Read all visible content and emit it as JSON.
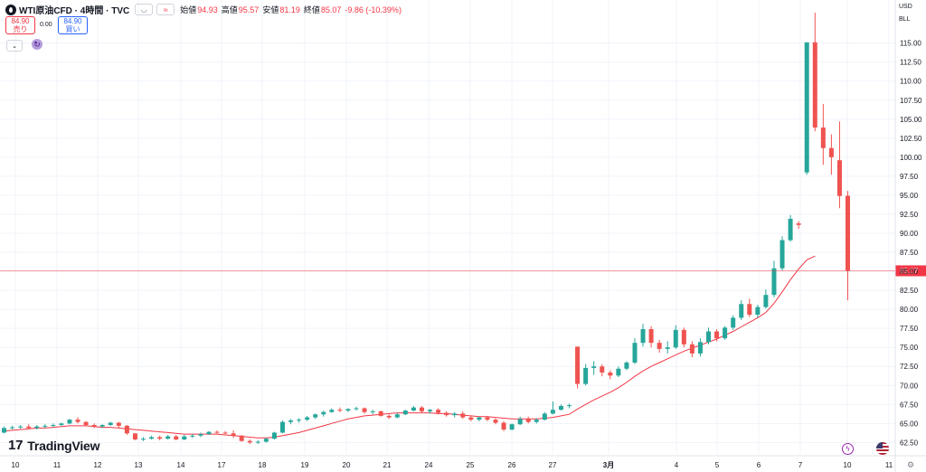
{
  "legend": {
    "symbol": "WTI原油CFD · 4時間 · TVC",
    "open_label": "始値",
    "open": "94.93",
    "high_label": "高値",
    "high": "95.57",
    "low_label": "安値",
    "low": "81.19",
    "close_label": "終値",
    "close": "85.07",
    "change": "-9.86 (-10.39%)"
  },
  "trade": {
    "sell_price": "84.90",
    "sell_label": "売り",
    "spread": "0.00",
    "buy_price": "84.90",
    "buy_label": "買い"
  },
  "scale": {
    "currency": "USD",
    "unit": "BLL"
  },
  "brand": {
    "name": "TradingView"
  },
  "colors": {
    "up": "#26a69a",
    "down": "#ef5350",
    "ma": "#f23645",
    "price_line": "#f23645",
    "grid": "#f0f3fa"
  },
  "chart_data": {
    "type": "candlestick",
    "x_tick_labels": [
      "10",
      "11",
      "12",
      "13",
      "14",
      "17",
      "18",
      "19",
      "20",
      "21",
      "24",
      "25",
      "26",
      "27",
      "3月",
      "4",
      "5",
      "6",
      "7",
      "10",
      "11"
    ],
    "y_ticks": [
      62.5,
      65.0,
      67.5,
      70.0,
      72.5,
      75.0,
      77.5,
      80.0,
      82.5,
      85.0,
      87.5,
      90.0,
      92.5,
      95.0,
      97.5,
      100.0,
      102.5,
      105.0,
      107.5,
      110.0,
      112.5,
      115.0
    ],
    "y_range": [
      61.0,
      119.0
    ],
    "last_price": 85.07,
    "last_price_label": "85.07",
    "ohlc": [
      [
        63.8,
        64.6,
        63.7,
        64.4
      ],
      [
        64.4,
        64.7,
        64.2,
        64.5
      ],
      [
        64.5,
        64.8,
        64.3,
        64.6
      ],
      [
        64.6,
        64.9,
        64.2,
        64.4
      ],
      [
        64.4,
        64.8,
        64.2,
        64.6
      ],
      [
        64.6,
        64.9,
        64.4,
        64.7
      ],
      [
        64.7,
        65.0,
        64.5,
        64.8
      ],
      [
        64.8,
        65.1,
        64.7,
        65.0
      ],
      [
        65.0,
        65.6,
        64.9,
        65.5
      ],
      [
        65.5,
        65.8,
        65.0,
        65.2
      ],
      [
        65.2,
        65.3,
        64.6,
        64.8
      ],
      [
        64.8,
        65.0,
        64.4,
        64.6
      ],
      [
        64.6,
        64.9,
        64.4,
        64.8
      ],
      [
        64.8,
        65.2,
        64.7,
        65.1
      ],
      [
        65.1,
        65.2,
        64.4,
        64.7
      ],
      [
        64.7,
        64.8,
        63.5,
        63.7
      ],
      [
        63.7,
        63.7,
        62.8,
        62.9
      ],
      [
        62.9,
        63.2,
        62.7,
        63.0
      ],
      [
        63.0,
        63.4,
        62.9,
        63.2
      ],
      [
        63.2,
        63.4,
        62.8,
        63.0
      ],
      [
        63.0,
        63.5,
        62.9,
        63.3
      ],
      [
        63.3,
        63.5,
        62.8,
        62.9
      ],
      [
        62.9,
        63.5,
        62.8,
        63.3
      ],
      [
        63.3,
        63.6,
        63.1,
        63.4
      ],
      [
        63.4,
        63.8,
        63.2,
        63.6
      ],
      [
        63.6,
        64.0,
        63.5,
        63.9
      ],
      [
        63.9,
        64.1,
        63.6,
        63.8
      ],
      [
        63.8,
        64.0,
        63.6,
        63.7
      ],
      [
        63.7,
        64.1,
        63.1,
        63.4
      ],
      [
        63.4,
        63.5,
        62.6,
        62.7
      ],
      [
        62.7,
        62.9,
        62.3,
        62.5
      ],
      [
        62.5,
        62.8,
        62.3,
        62.6
      ],
      [
        62.6,
        63.1,
        62.5,
        63.0
      ],
      [
        63.0,
        63.9,
        62.9,
        63.8
      ],
      [
        63.8,
        65.4,
        63.7,
        65.2
      ],
      [
        65.2,
        65.6,
        64.9,
        65.4
      ],
      [
        65.4,
        65.7,
        65.1,
        65.5
      ],
      [
        65.5,
        66.0,
        65.3,
        65.8
      ],
      [
        65.8,
        66.3,
        65.6,
        66.2
      ],
      [
        66.2,
        66.7,
        65.9,
        66.5
      ],
      [
        66.5,
        67.0,
        66.4,
        66.8
      ],
      [
        66.8,
        67.1,
        66.5,
        66.7
      ],
      [
        66.7,
        67.0,
        66.5,
        66.9
      ],
      [
        66.9,
        67.2,
        66.7,
        67.0
      ],
      [
        67.0,
        67.1,
        66.3,
        66.5
      ],
      [
        66.5,
        66.8,
        66.2,
        66.6
      ],
      [
        66.6,
        66.7,
        65.9,
        66.0
      ],
      [
        66.0,
        66.2,
        65.6,
        65.8
      ],
      [
        65.8,
        66.4,
        65.7,
        66.2
      ],
      [
        66.2,
        66.8,
        66.1,
        66.7
      ],
      [
        66.7,
        67.3,
        66.6,
        67.1
      ],
      [
        67.1,
        67.3,
        66.4,
        66.6
      ],
      [
        66.6,
        66.9,
        66.3,
        66.8
      ],
      [
        66.8,
        67.0,
        66.2,
        66.4
      ],
      [
        66.4,
        66.6,
        65.9,
        66.1
      ],
      [
        66.1,
        66.5,
        65.8,
        66.3
      ],
      [
        66.3,
        66.6,
        65.6,
        65.8
      ],
      [
        65.8,
        66.0,
        65.3,
        65.5
      ],
      [
        65.5,
        65.9,
        65.3,
        65.8
      ],
      [
        65.8,
        66.0,
        65.3,
        65.5
      ],
      [
        65.5,
        65.7,
        64.9,
        65.1
      ],
      [
        65.1,
        65.3,
        64.0,
        64.2
      ],
      [
        64.2,
        65.0,
        64.1,
        64.9
      ],
      [
        64.9,
        65.9,
        64.8,
        65.6
      ],
      [
        65.6,
        65.9,
        65.0,
        65.2
      ],
      [
        65.2,
        65.7,
        65.0,
        65.5
      ],
      [
        65.5,
        66.5,
        65.4,
        66.3
      ],
      [
        66.3,
        67.9,
        66.2,
        66.8
      ],
      [
        66.8,
        67.5,
        66.7,
        67.3
      ],
      [
        67.3,
        67.6,
        67.0,
        67.4
      ],
      [
        75.1,
        75.1,
        69.6,
        70.2
      ],
      [
        70.2,
        72.8,
        70.0,
        72.3
      ],
      [
        72.3,
        73.2,
        71.4,
        72.5
      ],
      [
        72.5,
        72.8,
        71.2,
        71.7
      ],
      [
        71.7,
        72.0,
        70.8,
        71.3
      ],
      [
        71.3,
        72.5,
        71.1,
        72.2
      ],
      [
        72.2,
        73.2,
        72.0,
        73.0
      ],
      [
        73.0,
        76.2,
        72.8,
        75.6
      ],
      [
        75.6,
        78.1,
        75.1,
        77.4
      ],
      [
        77.4,
        77.8,
        75.0,
        75.6
      ],
      [
        75.6,
        76.0,
        74.3,
        74.8
      ],
      [
        74.8,
        75.8,
        74.2,
        75.0
      ],
      [
        75.0,
        77.9,
        74.8,
        77.3
      ],
      [
        77.3,
        77.6,
        75.0,
        75.4
      ],
      [
        75.4,
        75.8,
        73.7,
        74.2
      ],
      [
        74.2,
        76.2,
        73.8,
        75.7
      ],
      [
        75.7,
        77.6,
        75.4,
        77.1
      ],
      [
        77.1,
        77.4,
        75.8,
        76.2
      ],
      [
        76.2,
        77.8,
        76.0,
        77.6
      ],
      [
        77.6,
        79.2,
        77.3,
        78.9
      ],
      [
        78.9,
        81.2,
        78.6,
        80.7
      ],
      [
        80.7,
        81.4,
        79.0,
        79.3
      ],
      [
        79.3,
        80.6,
        78.9,
        80.3
      ],
      [
        80.3,
        82.6,
        80.1,
        81.9
      ],
      [
        81.9,
        86.4,
        81.6,
        85.4
      ],
      [
        85.4,
        89.6,
        85.1,
        89.1
      ],
      [
        89.1,
        92.4,
        88.9,
        91.9
      ],
      [
        91.3,
        91.6,
        90.6,
        91.1
      ],
      [
        98.0,
        115.1,
        97.7,
        115.1
      ],
      [
        115.1,
        119.0,
        103.4,
        103.9
      ],
      [
        103.9,
        107.0,
        99.0,
        101.2
      ],
      [
        101.2,
        103.0,
        97.7,
        100.0
      ],
      [
        99.6,
        104.7,
        93.3,
        94.9
      ],
      [
        94.93,
        95.57,
        81.19,
        85.07
      ]
    ],
    "moving_average": [
      64.0,
      64.1,
      64.2,
      64.3,
      64.4,
      64.4,
      64.5,
      64.6,
      64.7,
      64.7,
      64.7,
      64.6,
      64.5,
      64.5,
      64.4,
      64.3,
      64.2,
      64.1,
      64.0,
      63.9,
      63.8,
      63.7,
      63.6,
      63.6,
      63.6,
      63.6,
      63.6,
      63.5,
      63.4,
      63.3,
      63.2,
      63.1,
      63.1,
      63.2,
      63.4,
      63.6,
      63.8,
      64.1,
      64.4,
      64.7,
      65.0,
      65.3,
      65.6,
      65.8,
      66.0,
      66.1,
      66.2,
      66.3,
      66.4,
      66.4,
      66.4,
      66.4,
      66.4,
      66.3,
      66.3,
      66.2,
      66.1,
      66.0,
      65.9,
      65.9,
      65.8,
      65.7,
      65.6,
      65.6,
      65.6,
      65.6,
      65.7,
      65.8,
      66.0,
      66.2,
      66.9,
      67.5,
      68.1,
      68.6,
      69.1,
      69.7,
      70.4,
      71.2,
      71.9,
      72.5,
      73.0,
      73.5,
      74.0,
      74.5,
      74.9,
      75.3,
      75.7,
      76.1,
      76.6,
      77.1,
      77.7,
      78.3,
      78.9,
      79.6,
      80.8,
      82.3,
      83.9,
      85.3,
      86.5,
      87.0
    ]
  }
}
